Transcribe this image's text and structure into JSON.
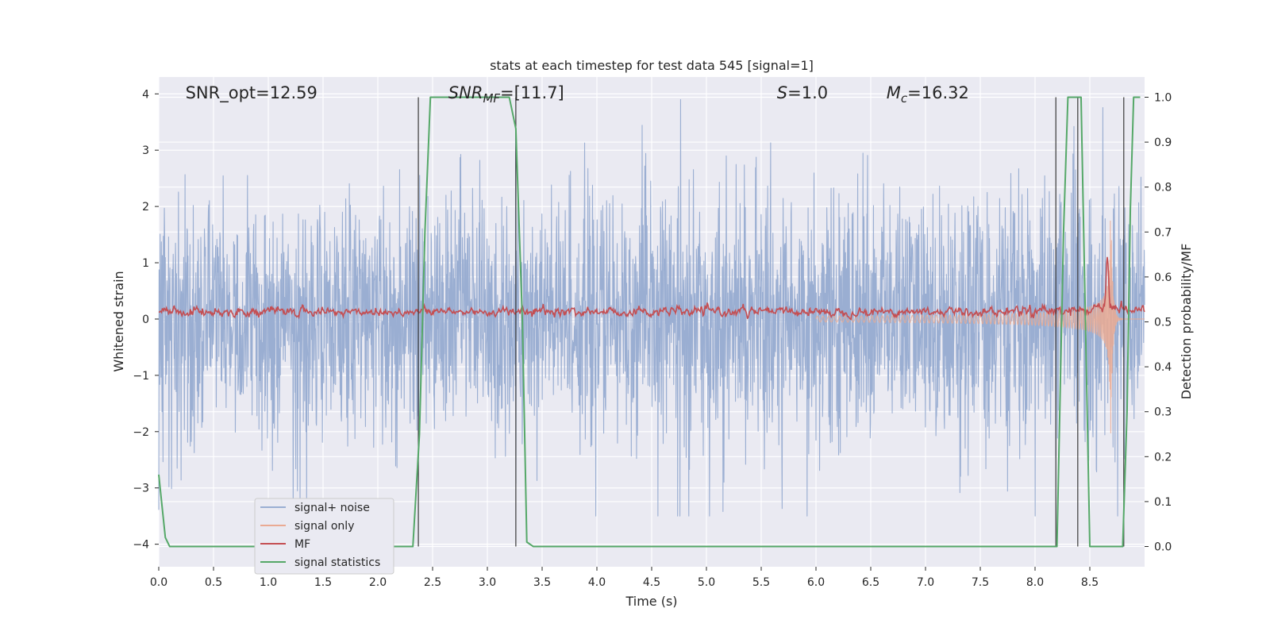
{
  "chart_data": {
    "type": "line",
    "title": "stats at each timestep for test data 545 [signal=1]",
    "xlabel": "Time (s)",
    "ylabel": "Whitened strain",
    "ylabel_right": "Detection probability/MF",
    "xlim": [
      0.0,
      9.0
    ],
    "ylim": [
      -4.4,
      4.3
    ],
    "ylim_right": [
      -0.045,
      1.045
    ],
    "xticks": [
      "0.0",
      "0.5",
      "1.0",
      "1.5",
      "2.0",
      "2.5",
      "3.0",
      "3.5",
      "4.0",
      "4.5",
      "5.0",
      "5.5",
      "6.0",
      "6.5",
      "7.0",
      "7.5",
      "8.0",
      "8.5"
    ],
    "yticks": [
      "4",
      "3",
      "2",
      "1",
      "0",
      "−1",
      "−2",
      "−3",
      "−4"
    ],
    "yticks_right": [
      "1.0",
      "0.9",
      "0.8",
      "0.7",
      "0.6",
      "0.5",
      "0.4",
      "0.3",
      "0.2",
      "0.1",
      "0.0"
    ],
    "grid": true,
    "legend_placement": "lower-left",
    "annotations": [
      {
        "text": "SNR_opt=12.59",
        "x": 0.2
      },
      {
        "text": "SNR_MF=[11.7]",
        "x": 2.6,
        "math": true
      },
      {
        "text": "S=1.0",
        "x": 5.6,
        "math": true
      },
      {
        "text": "M_c=16.32",
        "x": 6.6,
        "math": true
      }
    ],
    "series": [
      {
        "name": "signal+ noise",
        "color": "#9aaed2",
        "axis": "left",
        "style": "noise",
        "approx_range": [
          -3.5,
          3.9
        ]
      },
      {
        "name": "signal only",
        "color": "#eaaa93",
        "axis": "left",
        "style": "chirp",
        "x_start": 6.0,
        "x_peak": 8.66,
        "peak_amplitude": 2.2
      },
      {
        "name": "MF",
        "color": "#c44e52",
        "axis": "left",
        "style": "trace",
        "baseline": 0.13,
        "peak_x": 8.66,
        "peak_y": 1.05
      },
      {
        "name": "signal statistics",
        "color": "#55a868",
        "axis": "right",
        "x": [
          0.0,
          0.06,
          0.1,
          2.32,
          2.38,
          2.43,
          2.48,
          3.2,
          3.26,
          3.32,
          3.36,
          3.42,
          8.2,
          8.26,
          8.3,
          8.42,
          8.5,
          8.8,
          8.84,
          8.87,
          8.9,
          8.96
        ],
        "y": [
          0.16,
          0.02,
          0.0,
          0.0,
          0.25,
          0.7,
          1.0,
          1.0,
          0.93,
          0.5,
          0.01,
          0.0,
          0.0,
          0.7,
          1.0,
          1.0,
          0.0,
          0.0,
          0.3,
          0.75,
          1.0,
          1.0
        ]
      }
    ],
    "vertical_lines_x": [
      2.37,
      3.26,
      8.19,
      8.39,
      8.81
    ]
  }
}
